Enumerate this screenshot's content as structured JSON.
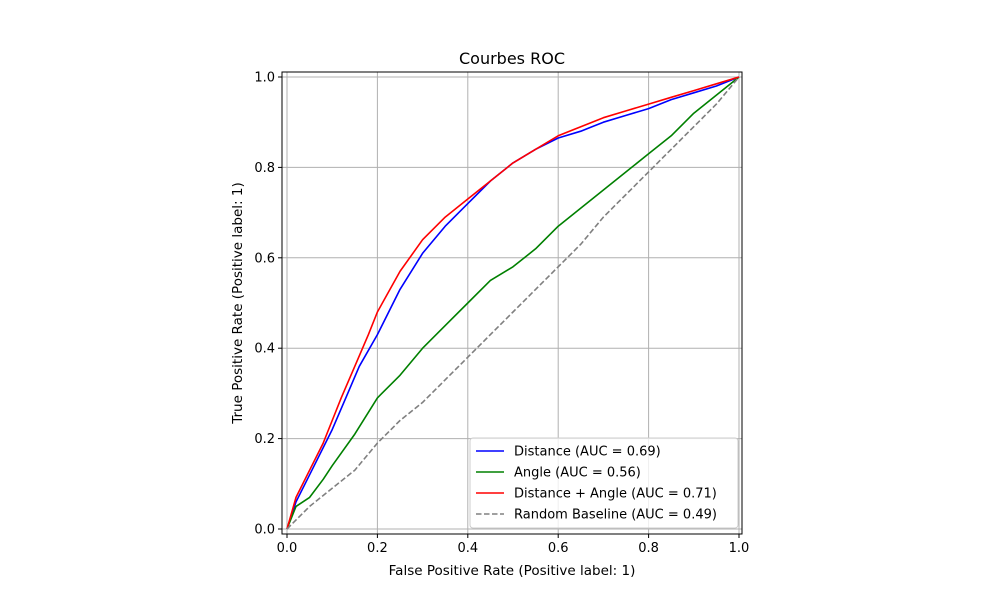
{
  "chart_data": {
    "type": "line",
    "title": "Courbes ROC",
    "xlabel": "False Positive Rate (Positive label: 1)",
    "ylabel": "True Positive Rate (Positive label: 1)",
    "xlim": [
      0,
      1
    ],
    "ylim": [
      0,
      1
    ],
    "xticks": [
      "0.0",
      "0.2",
      "0.4",
      "0.6",
      "0.8",
      "1.0"
    ],
    "yticks": [
      "0.0",
      "0.2",
      "0.4",
      "0.6",
      "0.8",
      "1.0"
    ],
    "grid": true,
    "legend_position": "lower-right",
    "series": [
      {
        "name": "Distance (AUC = 0.69)",
        "color": "#0000ff",
        "dash": "solid",
        "x": [
          0,
          0.02,
          0.05,
          0.08,
          0.1,
          0.13,
          0.16,
          0.2,
          0.25,
          0.3,
          0.35,
          0.4,
          0.45,
          0.5,
          0.55,
          0.6,
          0.65,
          0.7,
          0.75,
          0.8,
          0.85,
          0.9,
          0.95,
          1.0
        ],
        "y": [
          0,
          0.06,
          0.12,
          0.18,
          0.22,
          0.29,
          0.36,
          0.43,
          0.53,
          0.61,
          0.67,
          0.72,
          0.77,
          0.81,
          0.84,
          0.865,
          0.88,
          0.9,
          0.915,
          0.93,
          0.95,
          0.965,
          0.98,
          1.0
        ]
      },
      {
        "name": "Angle (AUC = 0.56)",
        "color": "#008000",
        "dash": "solid",
        "x": [
          0,
          0.02,
          0.05,
          0.08,
          0.1,
          0.15,
          0.2,
          0.25,
          0.3,
          0.35,
          0.4,
          0.45,
          0.5,
          0.55,
          0.6,
          0.65,
          0.7,
          0.75,
          0.8,
          0.85,
          0.9,
          0.95,
          1.0
        ],
        "y": [
          0,
          0.05,
          0.07,
          0.11,
          0.14,
          0.21,
          0.29,
          0.34,
          0.4,
          0.45,
          0.5,
          0.55,
          0.58,
          0.62,
          0.67,
          0.71,
          0.75,
          0.79,
          0.83,
          0.87,
          0.92,
          0.96,
          1.0
        ]
      },
      {
        "name": "Distance + Angle (AUC = 0.71)",
        "color": "#ff0000",
        "dash": "solid",
        "x": [
          0,
          0.02,
          0.05,
          0.08,
          0.1,
          0.12,
          0.15,
          0.18,
          0.2,
          0.25,
          0.3,
          0.35,
          0.4,
          0.45,
          0.5,
          0.55,
          0.6,
          0.65,
          0.7,
          0.75,
          0.8,
          0.85,
          0.9,
          0.95,
          1.0
        ],
        "y": [
          0,
          0.07,
          0.13,
          0.19,
          0.24,
          0.29,
          0.36,
          0.43,
          0.48,
          0.57,
          0.64,
          0.69,
          0.73,
          0.77,
          0.81,
          0.84,
          0.87,
          0.89,
          0.91,
          0.925,
          0.94,
          0.955,
          0.97,
          0.985,
          1.0
        ]
      },
      {
        "name": "Random Baseline (AUC = 0.49)",
        "color": "#808080",
        "dash": "dashed",
        "x": [
          0,
          0.05,
          0.1,
          0.15,
          0.2,
          0.25,
          0.3,
          0.35,
          0.4,
          0.45,
          0.5,
          0.55,
          0.6,
          0.65,
          0.7,
          0.75,
          0.8,
          0.85,
          0.9,
          0.95,
          1.0
        ],
        "y": [
          0,
          0.05,
          0.09,
          0.13,
          0.19,
          0.24,
          0.28,
          0.33,
          0.38,
          0.43,
          0.48,
          0.53,
          0.58,
          0.63,
          0.69,
          0.74,
          0.79,
          0.84,
          0.89,
          0.94,
          1.0
        ]
      }
    ]
  }
}
